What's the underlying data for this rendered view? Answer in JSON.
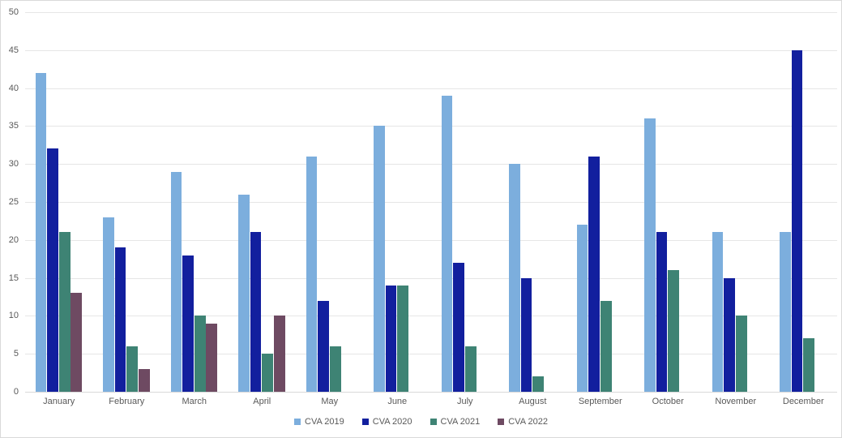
{
  "chart_data": {
    "type": "bar",
    "title": "",
    "categories": [
      "January",
      "February",
      "March",
      "April",
      "May",
      "June",
      "July",
      "August",
      "September",
      "October",
      "November",
      "December"
    ],
    "series": [
      {
        "name": "CVA 2019",
        "color": "#7caedd",
        "values": [
          42,
          23,
          29,
          26,
          31,
          35,
          39,
          30,
          22,
          36,
          21,
          21
        ]
      },
      {
        "name": "CVA 2020",
        "color": "#121f9e",
        "values": [
          32,
          19,
          18,
          21,
          12,
          14,
          17,
          15,
          31,
          21,
          15,
          45
        ]
      },
      {
        "name": "CVA 2021",
        "color": "#3e8374",
        "values": [
          21,
          6,
          10,
          5,
          6,
          14,
          6,
          2,
          12,
          16,
          10,
          7
        ]
      },
      {
        "name": "CVA 2022",
        "color": "#6e4a62",
        "values": [
          13,
          3,
          9,
          10,
          null,
          null,
          null,
          null,
          null,
          null,
          null,
          null
        ]
      }
    ],
    "ylim": [
      0,
      50
    ],
    "ytick_step": 5,
    "ytick_labels": [
      "0",
      "5",
      "10",
      "15",
      "20",
      "25",
      "30",
      "35",
      "40",
      "45",
      "50"
    ],
    "grid": true,
    "legend_position": "bottom",
    "colors": {
      "text": "#595959",
      "gridline": "#e6e6e6",
      "axis": "#d9d9d9",
      "background": "#ffffff",
      "border": "#d9d9d9"
    }
  }
}
